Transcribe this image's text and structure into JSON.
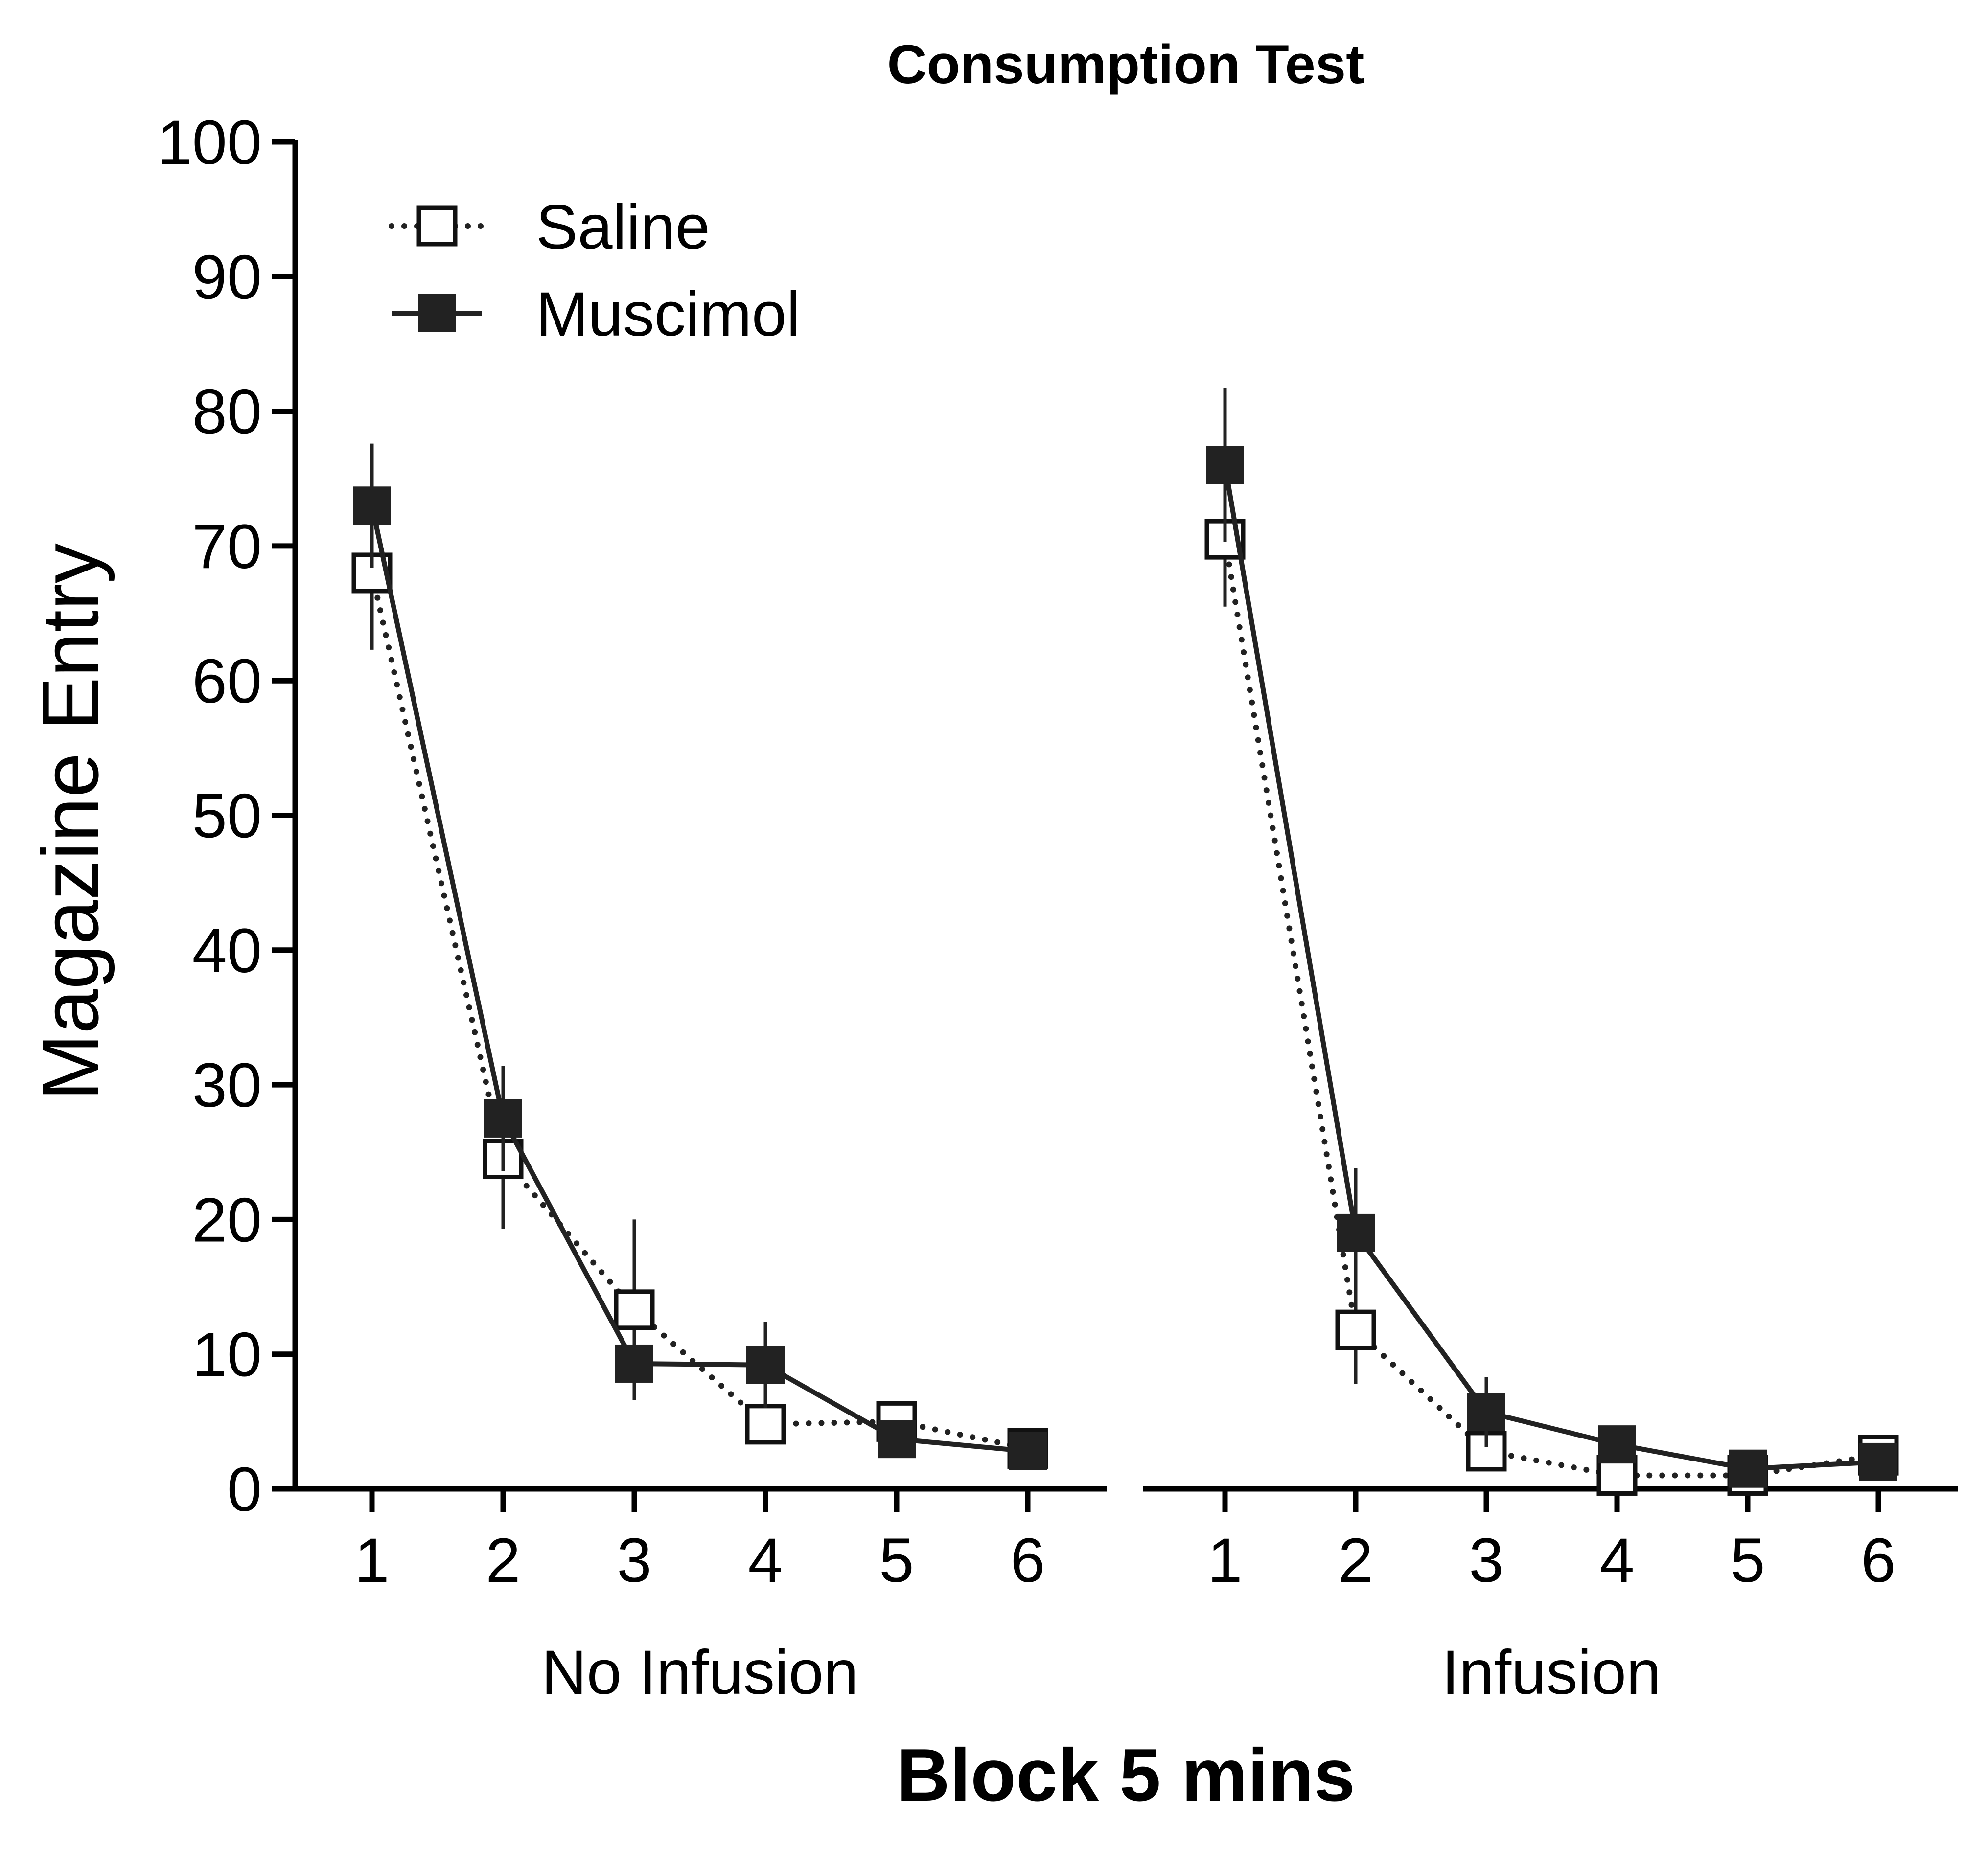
{
  "chart_data": {
    "type": "line",
    "title": "Consumption Test",
    "xlabel": "Block 5 mins",
    "ylabel": "Magazine Entry",
    "ylim": [
      0,
      100
    ],
    "yticks": [
      0,
      10,
      20,
      30,
      40,
      50,
      60,
      70,
      80,
      90,
      100
    ],
    "x": [
      1,
      2,
      3,
      4,
      5,
      6
    ],
    "legend_position": "top-left",
    "series_styles": [
      {
        "name": "Saline",
        "line": "dotted",
        "marker": "open-square",
        "color": "#222222"
      },
      {
        "name": "Muscimol",
        "line": "solid",
        "marker": "filled-square",
        "color": "#222222"
      }
    ],
    "panels": [
      {
        "label": "No Infusion",
        "series": [
          {
            "name": "Saline",
            "values": [
              68,
              24.5,
              13.3,
              4.8,
              5,
              3
            ],
            "error": [
              5.7,
              5.2,
              6.7,
              0,
              0,
              0
            ]
          },
          {
            "name": "Muscimol",
            "values": [
              73,
              27.5,
              9.3,
              9.2,
              3.7,
              2.8
            ],
            "error": [
              4.6,
              3.9,
              0,
              3.2,
              0,
              0
            ]
          }
        ]
      },
      {
        "label": "Infusion",
        "series": [
          {
            "name": "Saline",
            "values": [
              70.5,
              11.8,
              2.8,
              1,
              1,
              2.5
            ],
            "error": [
              5,
              4,
              0,
              0,
              0,
              0
            ]
          },
          {
            "name": "Muscimol",
            "values": [
              76,
              19,
              5.7,
              3.3,
              1.5,
              2
            ],
            "error": [
              5.7,
              4.8,
              2.6,
              0,
              0,
              0
            ]
          }
        ]
      }
    ]
  }
}
